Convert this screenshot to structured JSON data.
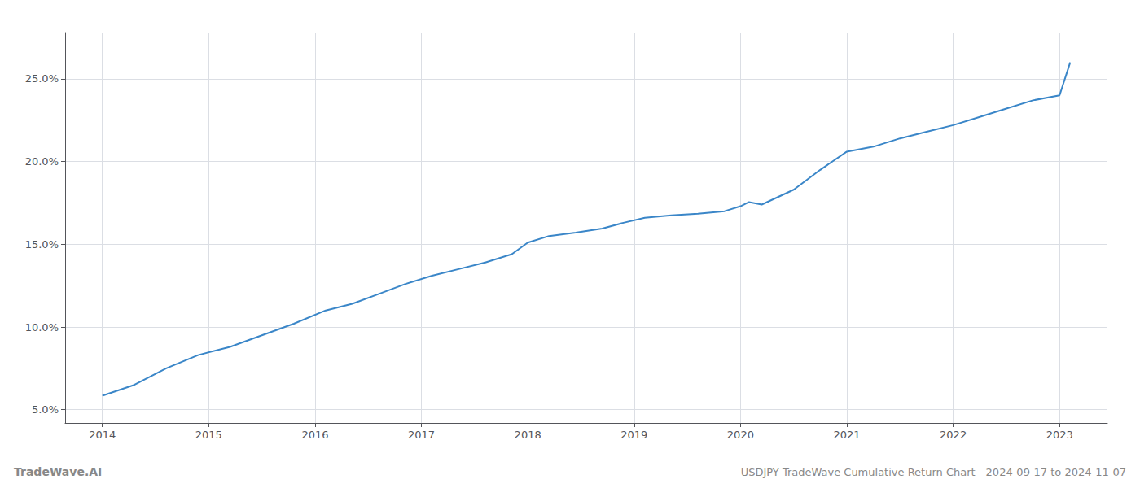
{
  "chart_data": {
    "type": "line",
    "title": "USDJPY TradeWave Cumulative Return Chart - 2024-09-17 to 2024-11-07",
    "annotations": [
      "TradeWave.AI"
    ],
    "x": [
      2014.0,
      2014.3,
      2014.6,
      2014.9,
      2015.2,
      2015.5,
      2015.8,
      2016.1,
      2016.35,
      2016.6,
      2016.85,
      2017.1,
      2017.35,
      2017.6,
      2017.85,
      2018.0,
      2018.2,
      2018.45,
      2018.7,
      2018.9,
      2019.1,
      2019.35,
      2019.6,
      2019.85,
      2020.0,
      2020.08,
      2020.2,
      2020.5,
      2020.75,
      2021.0,
      2021.25,
      2021.5,
      2021.75,
      2022.0,
      2022.25,
      2022.5,
      2022.75,
      2023.0,
      2023.1
    ],
    "values": [
      5.85,
      6.5,
      7.5,
      8.3,
      8.8,
      9.5,
      10.2,
      11.0,
      11.4,
      12.0,
      12.6,
      13.1,
      13.5,
      13.9,
      14.4,
      15.1,
      15.5,
      15.7,
      15.95,
      16.3,
      16.6,
      16.75,
      16.85,
      17.0,
      17.3,
      17.55,
      17.4,
      18.3,
      19.5,
      20.6,
      20.9,
      21.4,
      21.8,
      22.2,
      22.7,
      23.2,
      23.7,
      24.0,
      26.0
    ],
    "color": "#3a86c8",
    "xlim": [
      2013.65,
      2023.45
    ],
    "xticks": [
      2014,
      2015,
      2016,
      2017,
      2018,
      2019,
      2020,
      2021,
      2022,
      2023
    ],
    "ylim": [
      4.2,
      27.8
    ],
    "yticks": [
      {
        "value": 5,
        "label": "5.0%"
      },
      {
        "value": 10,
        "label": "10.0%"
      },
      {
        "value": 15,
        "label": "15.0%"
      },
      {
        "value": 20,
        "label": "20.0%"
      },
      {
        "value": 25,
        "label": "25.0%"
      }
    ],
    "grid": true
  }
}
